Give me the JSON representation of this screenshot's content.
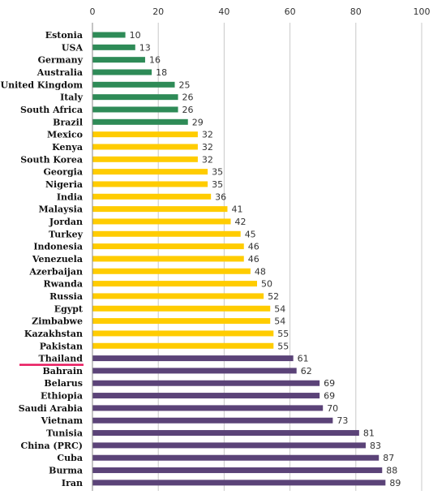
{
  "chart_data": {
    "type": "bar",
    "orientation": "horizontal",
    "title": "",
    "xlabel": "",
    "ylabel": "",
    "xlim": [
      0,
      100
    ],
    "x_ticks": [
      0,
      20,
      40,
      60,
      80,
      100
    ],
    "x_axis_position": "top",
    "grid": true,
    "highlighted_category": "Thailand",
    "highlight_color": "#e8175d",
    "group_colors": {
      "green": "#2e8b57",
      "yellow": "#ffcc00",
      "purple": "#5b4378"
    },
    "categories": [
      "Estonia",
      "USA",
      "Germany",
      "Australia",
      "United Kingdom",
      "Italy",
      "South Africa",
      "Brazil",
      "Mexico",
      "Kenya",
      "South Korea",
      "Georgia",
      "Nigeria",
      "India",
      "Malaysia",
      "Jordan",
      "Turkey",
      "Indonesia",
      "Venezuela",
      "Azerbaijan",
      "Rwanda",
      "Russia",
      "Egypt",
      "Zimbabwe",
      "Kazakhstan",
      "Pakistan",
      "Thailand",
      "Bahrain",
      "Belarus",
      "Ethiopia",
      "Saudi Arabia",
      "Vietnam",
      "Tunisia",
      "China (PRC)",
      "Cuba",
      "Burma",
      "Iran"
    ],
    "values": [
      10,
      13,
      16,
      18,
      25,
      26,
      26,
      29,
      32,
      32,
      32,
      35,
      35,
      36,
      41,
      42,
      45,
      46,
      46,
      48,
      50,
      52,
      54,
      54,
      55,
      55,
      61,
      62,
      69,
      69,
      70,
      73,
      81,
      83,
      87,
      88,
      89
    ],
    "bar_groups": [
      "green",
      "green",
      "green",
      "green",
      "green",
      "green",
      "green",
      "green",
      "yellow",
      "yellow",
      "yellow",
      "yellow",
      "yellow",
      "yellow",
      "yellow",
      "yellow",
      "yellow",
      "yellow",
      "yellow",
      "yellow",
      "yellow",
      "yellow",
      "yellow",
      "yellow",
      "yellow",
      "yellow",
      "purple",
      "purple",
      "purple",
      "purple",
      "purple",
      "purple",
      "purple",
      "purple",
      "purple",
      "purple",
      "purple"
    ]
  }
}
